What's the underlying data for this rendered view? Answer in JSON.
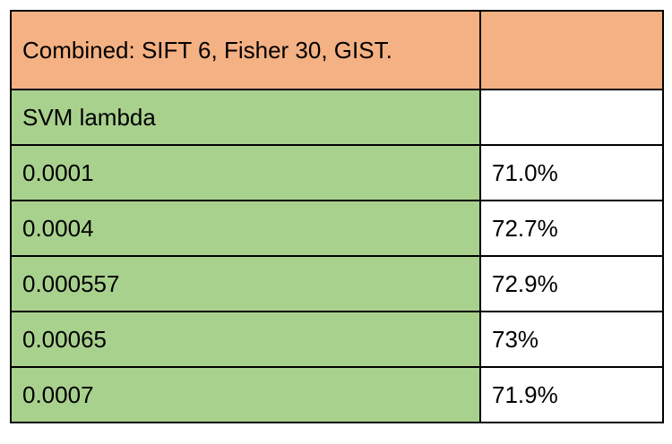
{
  "table": {
    "header": {
      "title": "Combined: SIFT 6, Fisher 30, GIST.",
      "right": ""
    },
    "subheader": {
      "label": "SVM lambda",
      "value": ""
    },
    "rows": [
      {
        "lambda": "0.0001",
        "accuracy": "71.0%"
      },
      {
        "lambda": "0.0004",
        "accuracy": "72.7%"
      },
      {
        "lambda": "0.000557",
        "accuracy": "72.9%"
      },
      {
        "lambda": "0.00065",
        "accuracy": "73%"
      },
      {
        "lambda": "0.0007",
        "accuracy": "71.9%"
      }
    ]
  },
  "colors": {
    "header_bg": "#f4b183",
    "label_bg": "#a9d18e",
    "value_bg": "#ffffff",
    "border": "#000000"
  }
}
